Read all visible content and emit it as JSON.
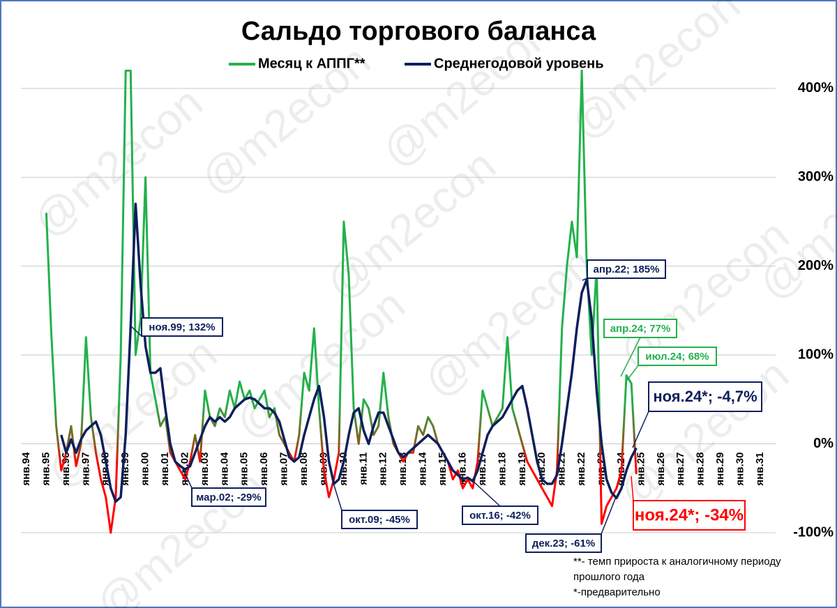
{
  "chart_data": {
    "type": "line",
    "title": "Сальдо торгового баланса",
    "watermark": "@m2econ",
    "categories": [
      "янв.94",
      null,
      null,
      null,
      "янв.95",
      null,
      null,
      null,
      "янв.96",
      null,
      null,
      null,
      "янв.97",
      null,
      null,
      null,
      "янв.98",
      null,
      null,
      null,
      "янв.99",
      null,
      null,
      null,
      "янв.00",
      null,
      null,
      null,
      "янв.01",
      null,
      null,
      null,
      "янв.02",
      null,
      null,
      null,
      "янв.03",
      null,
      null,
      null,
      "янв.04",
      null,
      null,
      null,
      "янв.05",
      null,
      null,
      null,
      "янв.06",
      null,
      null,
      null,
      "янв.07",
      null,
      null,
      null,
      "янв.08",
      null,
      null,
      null,
      "янв.09",
      null,
      null,
      null,
      "янв.10",
      null,
      null,
      null,
      "янв.11",
      null,
      null,
      null,
      "янв.12",
      null,
      null,
      null,
      "янв.13",
      null,
      null,
      null,
      "янв.14",
      null,
      null,
      null,
      "янв.15",
      null,
      null,
      null,
      "янв.16",
      null,
      null,
      null,
      "янв.17",
      null,
      null,
      null,
      "янв.18",
      null,
      null,
      null,
      "янв.19",
      null,
      null,
      null,
      "янв.20",
      null,
      null,
      null,
      "янв.21",
      null,
      null,
      null,
      "янв.22",
      null,
      null,
      null,
      "янв.23",
      null,
      null,
      null,
      "янв.24",
      null,
      null,
      null,
      "янв.25",
      null,
      null,
      null,
      "янв.26",
      null,
      null,
      null,
      "янв.27",
      null,
      null,
      null,
      "янв.28",
      null,
      null,
      null,
      "янв.29",
      null,
      null,
      null,
      "янв.30",
      null,
      null,
      null,
      "янв.31",
      null,
      null,
      null
    ],
    "series": [
      {
        "name": "Месяц к АППГ**",
        "color": "#22b14c",
        "negative_color": "#ff0000",
        "width": 3,
        "values": [
          null,
          null,
          null,
          null,
          260,
          125,
          20,
          -30,
          -10,
          20,
          -25,
          0,
          120,
          30,
          -10,
          -40,
          -60,
          -100,
          -60,
          100,
          420,
          420,
          100,
          140,
          300,
          80,
          50,
          20,
          30,
          -10,
          -20,
          -30,
          -40,
          -20,
          10,
          -20,
          60,
          30,
          20,
          40,
          30,
          60,
          40,
          70,
          50,
          60,
          40,
          50,
          60,
          30,
          40,
          10,
          0,
          -10,
          -20,
          10,
          80,
          60,
          130,
          40,
          -30,
          -60,
          -40,
          -10,
          250,
          190,
          40,
          0,
          50,
          40,
          10,
          20,
          80,
          30,
          0,
          -10,
          -20,
          -10,
          -10,
          20,
          10,
          30,
          20,
          0,
          -10,
          -20,
          -40,
          -30,
          -50,
          -40,
          -50,
          -20,
          60,
          40,
          20,
          30,
          40,
          120,
          40,
          20,
          0,
          -20,
          -30,
          -40,
          -50,
          -60,
          -70,
          -30,
          130,
          200,
          250,
          210,
          420,
          200,
          100,
          200,
          -90,
          -70,
          -60,
          -50,
          -30,
          77,
          68,
          -34,
          null,
          null,
          null,
          null,
          null,
          null,
          null,
          null,
          null,
          null,
          null,
          null,
          null,
          null,
          null,
          null,
          null,
          null,
          null,
          null,
          null,
          null,
          null,
          null,
          null,
          null,
          null,
          null
        ]
      },
      {
        "name": "Среднегодовой уровень",
        "color": "#0d1f5c",
        "width": 3.5,
        "values": [
          null,
          null,
          null,
          null,
          null,
          null,
          null,
          10,
          -10,
          5,
          -10,
          5,
          15,
          20,
          25,
          10,
          -20,
          -50,
          -65,
          -60,
          10,
          132,
          270,
          180,
          110,
          80,
          80,
          85,
          40,
          0,
          -20,
          -25,
          -29,
          -25,
          -10,
          5,
          20,
          30,
          25,
          30,
          25,
          30,
          40,
          45,
          50,
          52,
          50,
          45,
          40,
          40,
          35,
          25,
          5,
          -15,
          -20,
          -15,
          10,
          30,
          50,
          65,
          30,
          -20,
          -45,
          -40,
          -20,
          10,
          35,
          40,
          15,
          0,
          20,
          35,
          35,
          20,
          5,
          -10,
          -15,
          -10,
          -5,
          0,
          5,
          10,
          5,
          0,
          -10,
          -20,
          -30,
          -35,
          -40,
          -38,
          -42,
          -30,
          -10,
          10,
          20,
          25,
          30,
          40,
          50,
          60,
          65,
          40,
          10,
          -20,
          -40,
          -45,
          -45,
          -35,
          0,
          40,
          80,
          130,
          170,
          185,
          140,
          60,
          0,
          -40,
          -55,
          -61,
          -50,
          -30,
          -15,
          -4.7,
          null,
          null,
          null,
          null,
          null,
          null,
          null,
          null,
          null,
          null,
          null,
          null,
          null,
          null,
          null,
          null,
          null,
          null,
          null,
          null,
          null,
          null,
          null,
          null,
          null,
          null,
          null,
          null
        ]
      }
    ],
    "ylim": [
      -100,
      421
    ],
    "yticks": [
      {
        "value": -100,
        "label": "-100%"
      },
      {
        "value": 0,
        "label": "0%"
      },
      {
        "value": 100,
        "label": "100%"
      },
      {
        "value": 200,
        "label": "200%"
      },
      {
        "value": 300,
        "label": "300%"
      },
      {
        "value": 400,
        "label": "400%"
      }
    ],
    "grid": true,
    "annotations": [
      {
        "text": "ноя.99; 132%",
        "color": "#0d1f5c"
      },
      {
        "text": "мар.02; -29%",
        "color": "#0d1f5c"
      },
      {
        "text": "окт.09; -45%",
        "color": "#0d1f5c"
      },
      {
        "text": "окт.16; -42%",
        "color": "#0d1f5c"
      },
      {
        "text": "дек.23; -61%",
        "color": "#0d1f5c"
      },
      {
        "text": "апр.22; 185%",
        "color": "#0d1f5c"
      },
      {
        "text": "апр.24; 77%",
        "color": "#22b14c"
      },
      {
        "text": "июл.24; 68%",
        "color": "#22b14c"
      },
      {
        "text": "ноя.24*; -4,7%",
        "color": "#0d1f5c"
      },
      {
        "text": "ноя.24*; -34%",
        "color": "#ff0000"
      }
    ],
    "footnotes": [
      "**- темп прироста к аналогичному периоду",
      "прошлого года",
      "*-предварительно"
    ]
  }
}
